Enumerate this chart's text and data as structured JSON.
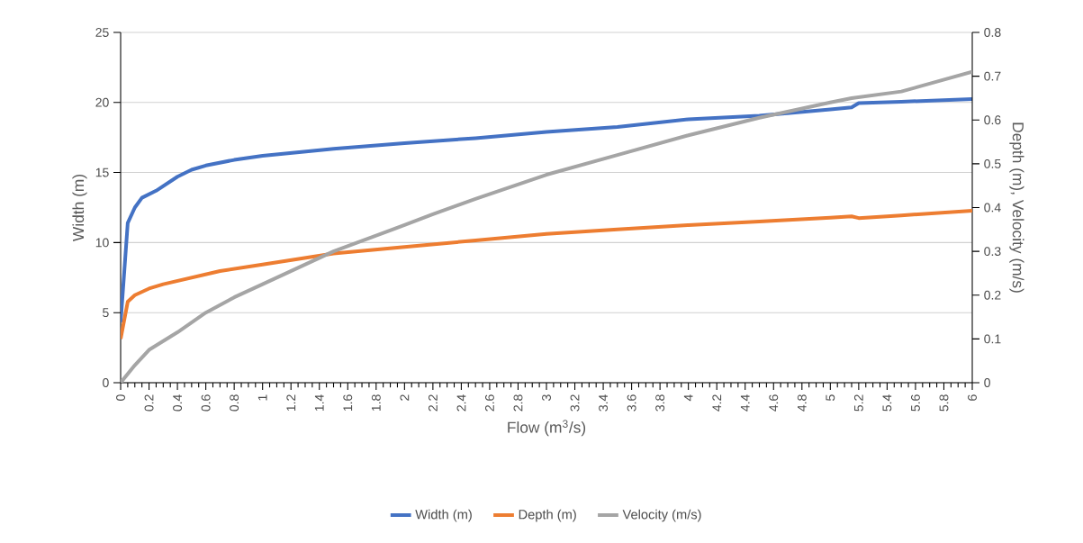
{
  "chart_data": {
    "type": "line",
    "xlabel": "Flow (m$^{3}$/s)",
    "ylabel": "Width (m)",
    "y2label": "Depth (m), Velocity (m/s)",
    "xlim": [
      0,
      6
    ],
    "xticks": [
      0,
      0.2,
      0.4,
      0.6,
      0.8,
      1,
      1.2,
      1.4,
      1.6,
      1.8,
      2,
      2.2,
      2.4,
      2.6,
      2.8,
      3,
      3.2,
      3.4,
      3.6,
      3.8,
      4,
      4.2,
      4.4,
      4.6,
      4.8,
      5,
      5.2,
      5.4,
      5.6,
      5.8,
      6
    ],
    "ylim": [
      0,
      25
    ],
    "yticks": [
      0,
      5,
      10,
      15,
      20,
      25
    ],
    "y2lim": [
      0,
      0.8
    ],
    "y2ticks": [
      0,
      0.1,
      0.2,
      0.3,
      0.4,
      0.5,
      0.6,
      0.7,
      0.8
    ],
    "grid": "y",
    "legend": "bottom",
    "marker": "none",
    "line_style": "solid",
    "series": [
      {
        "name": "Width (m)",
        "color": "#4472c4",
        "x": [
          0,
          0.05,
          0.1,
          0.15,
          0.25,
          0.4,
          0.5,
          0.6,
          0.8,
          1,
          1.5,
          2,
          2.5,
          3,
          3.5,
          4,
          4.5,
          5,
          5.15,
          5.2,
          5.5,
          6
        ],
        "values": [
          4.3,
          11.4,
          12.5,
          13.2,
          13.7,
          14.7,
          15.2,
          15.5,
          15.9,
          16.2,
          16.7,
          17.1,
          17.45,
          17.9,
          18.25,
          18.8,
          19.05,
          19.5,
          19.65,
          19.95,
          20.05,
          20.25
        ]
      },
      {
        "name": "Depth (m)",
        "color": "#ed7d31",
        "axis": "y2",
        "x": [
          0,
          0.05,
          0.1,
          0.2,
          0.3,
          0.5,
          0.7,
          1,
          1.5,
          2,
          2.5,
          3,
          3.5,
          4,
          4.5,
          5,
          5.15,
          5.2,
          5.5,
          6
        ],
        "values": [
          0.1,
          0.185,
          0.2,
          0.215,
          0.225,
          0.24,
          0.255,
          0.27,
          0.295,
          0.31,
          0.325,
          0.34,
          0.35,
          0.36,
          0.368,
          0.377,
          0.38,
          0.376,
          0.382,
          0.393
        ]
      },
      {
        "name": "Velocity (m/s)",
        "color": "#a5a5a5",
        "axis": "y2",
        "x": [
          0,
          0.1,
          0.2,
          0.4,
          0.6,
          0.8,
          1,
          1.5,
          2,
          2.2,
          2.5,
          3,
          3.5,
          4,
          4.5,
          5,
          5.15,
          5.5,
          6
        ],
        "values": [
          0,
          0.04,
          0.075,
          0.115,
          0.16,
          0.195,
          0.225,
          0.3,
          0.36,
          0.385,
          0.42,
          0.475,
          0.52,
          0.565,
          0.605,
          0.64,
          0.65,
          0.665,
          0.71
        ]
      }
    ]
  }
}
